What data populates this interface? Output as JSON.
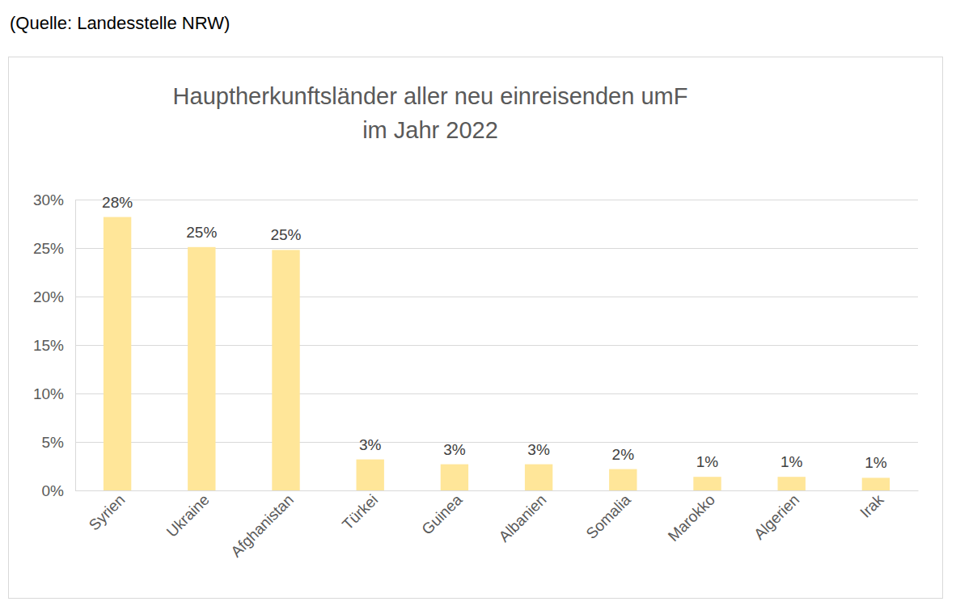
{
  "chart_data": {
    "type": "bar",
    "source": "(Quelle: Landesstelle NRW)",
    "title": [
      "Hauptherkunftsländer aller neu einreisenden umF",
      "im Jahr 2022"
    ],
    "categories": [
      "Syrien",
      "Ukraine",
      "Afghanistan",
      "Türkei",
      "Guinea",
      "Albanien",
      "Somalia",
      "Marokko",
      "Algerien",
      "Irak"
    ],
    "values": [
      28.2,
      25.1,
      24.8,
      3.2,
      2.7,
      2.7,
      2.2,
      1.4,
      1.4,
      1.3
    ],
    "value_labels": [
      "28%",
      "25%",
      "25%",
      "3%",
      "3%",
      "3%",
      "2%",
      "1%",
      "1%",
      "1%"
    ],
    "color": "#ffe699",
    "ylim": [
      0,
      30
    ],
    "yticks": [
      {
        "value": 0,
        "label": "0%"
      },
      {
        "value": 5,
        "label": "5%"
      },
      {
        "value": 10,
        "label": "10%"
      },
      {
        "value": 15,
        "label": "15%"
      },
      {
        "value": 20,
        "label": "20%"
      },
      {
        "value": 25,
        "label": "25%"
      },
      {
        "value": 30,
        "label": "30%"
      }
    ],
    "grid": true,
    "data_labels": true
  }
}
